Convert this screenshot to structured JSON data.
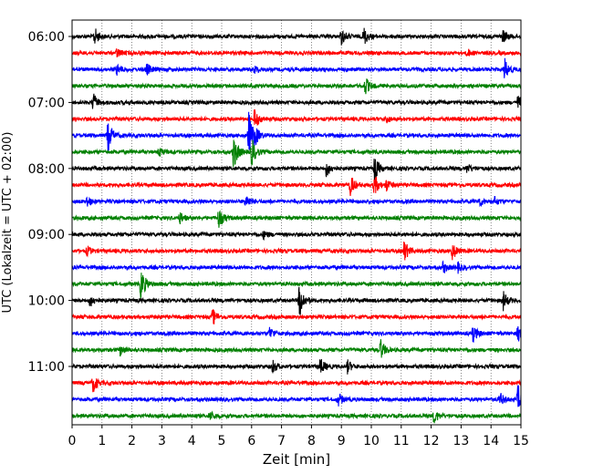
{
  "chart_data": {
    "type": "line",
    "subtype": "helicorder (seismogram drum plot)",
    "xlabel": "Zeit  [min]",
    "ylabel": "UTC (Lokalzeit = UTC + 02:00)",
    "xlim": [
      0,
      15
    ],
    "x_ticks": [
      "0",
      "1",
      "2",
      "3",
      "4",
      "5",
      "6",
      "7",
      "8",
      "9",
      "10",
      "11",
      "12",
      "13",
      "14",
      "15"
    ],
    "y_ticks": [
      "06:00",
      "07:00",
      "08:00",
      "09:00",
      "10:00",
      "11:00"
    ],
    "grid": "vertical dotted lines at each minute",
    "trace_interval_minutes": 15,
    "start_time": "06:00",
    "line_colors_cycle": [
      "#000000",
      "#ff0000",
      "#0000ff",
      "#008000"
    ],
    "traces": [
      {
        "start": "06:00",
        "color": "#000000",
        "events": [
          [
            0.75,
            10
          ],
          [
            9.0,
            9
          ],
          [
            9.75,
            10
          ],
          [
            14.4,
            7
          ]
        ]
      },
      {
        "start": "06:15",
        "color": "#ff0000",
        "events": [
          [
            1.5,
            5
          ],
          [
            13.2,
            4
          ]
        ]
      },
      {
        "start": "06:30",
        "color": "#0000ff",
        "events": [
          [
            1.5,
            6
          ],
          [
            2.5,
            6
          ],
          [
            6.1,
            4
          ],
          [
            14.45,
            12
          ]
        ]
      },
      {
        "start": "06:45",
        "color": "#008000",
        "events": [
          [
            9.8,
            10
          ]
        ]
      },
      {
        "start": "07:00",
        "color": "#000000",
        "events": [
          [
            0.7,
            10
          ],
          [
            14.9,
            8
          ]
        ]
      },
      {
        "start": "07:15",
        "color": "#ff0000",
        "events": [
          [
            6.1,
            12
          ],
          [
            10.5,
            4
          ]
        ]
      },
      {
        "start": "07:30",
        "color": "#0000ff",
        "events": [
          [
            1.2,
            18
          ],
          [
            5.9,
            26
          ],
          [
            6.1,
            8
          ]
        ]
      },
      {
        "start": "07:45",
        "color": "#008000",
        "events": [
          [
            5.4,
            20
          ],
          [
            6.0,
            16
          ],
          [
            2.9,
            5
          ]
        ]
      },
      {
        "start": "08:00",
        "color": "#000000",
        "events": [
          [
            8.5,
            9
          ],
          [
            10.1,
            14
          ],
          [
            13.2,
            5
          ]
        ]
      },
      {
        "start": "08:15",
        "color": "#ff0000",
        "events": [
          [
            9.3,
            12
          ],
          [
            10.1,
            12
          ],
          [
            10.5,
            6
          ]
        ]
      },
      {
        "start": "08:30",
        "color": "#0000ff",
        "events": [
          [
            0.5,
            6
          ],
          [
            5.8,
            8
          ],
          [
            14.1,
            5
          ],
          [
            13.6,
            5
          ]
        ]
      },
      {
        "start": "08:45",
        "color": "#008000",
        "events": [
          [
            3.6,
            6
          ],
          [
            4.9,
            12
          ]
        ]
      },
      {
        "start": "09:00",
        "color": "#000000",
        "events": [
          [
            6.4,
            4
          ]
        ]
      },
      {
        "start": "09:15",
        "color": "#ff0000",
        "events": [
          [
            0.5,
            5
          ],
          [
            11.1,
            12
          ],
          [
            12.7,
            10
          ]
        ]
      },
      {
        "start": "09:30",
        "color": "#0000ff",
        "events": [
          [
            12.4,
            6
          ],
          [
            12.9,
            5
          ]
        ]
      },
      {
        "start": "09:45",
        "color": "#008000",
        "events": [
          [
            2.3,
            18
          ]
        ]
      },
      {
        "start": "10:00",
        "color": "#000000",
        "events": [
          [
            0.6,
            7
          ],
          [
            7.6,
            20
          ],
          [
            14.4,
            11
          ]
        ]
      },
      {
        "start": "10:15",
        "color": "#ff0000",
        "events": [
          [
            4.7,
            9
          ]
        ]
      },
      {
        "start": "10:30",
        "color": "#0000ff",
        "events": [
          [
            6.6,
            7
          ],
          [
            13.4,
            9
          ],
          [
            14.9,
            10
          ]
        ]
      },
      {
        "start": "10:45",
        "color": "#008000",
        "events": [
          [
            1.6,
            6
          ],
          [
            10.3,
            12
          ]
        ]
      },
      {
        "start": "11:00",
        "color": "#000000",
        "events": [
          [
            6.7,
            7
          ],
          [
            8.3,
            9
          ],
          [
            9.2,
            7
          ]
        ]
      },
      {
        "start": "11:15",
        "color": "#ff0000",
        "events": [
          [
            0.7,
            10
          ]
        ]
      },
      {
        "start": "11:30",
        "color": "#0000ff",
        "events": [
          [
            8.9,
            7
          ],
          [
            14.3,
            7
          ],
          [
            14.9,
            16
          ]
        ]
      },
      {
        "start": "11:45",
        "color": "#008000",
        "events": [
          [
            4.6,
            5
          ],
          [
            12.1,
            8
          ]
        ]
      }
    ]
  }
}
